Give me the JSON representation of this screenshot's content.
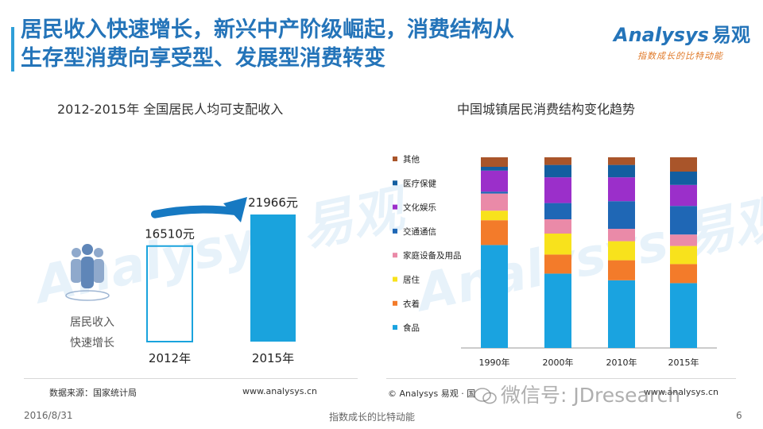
{
  "header": {
    "title": "居民收入快速增长，新兴中产阶级崛起，消费结构从\n生存型消费向享受型、发展型消费转变"
  },
  "logo": {
    "name": "Analysys",
    "name_cn": "易观",
    "slogan": "指数成长的比特动能"
  },
  "watermark": {
    "text": "Analysys 易观"
  },
  "people_caption": {
    "line1": "居民收入",
    "line2": "快速增长"
  },
  "chart_data": [
    {
      "type": "bar",
      "title": "2012-2015年 全国居民人均可支配收入",
      "categories": [
        "2012年",
        "2015年"
      ],
      "values": [
        16510,
        21966
      ],
      "value_labels": [
        "16510元",
        "21966元"
      ],
      "ylim": [
        0,
        25000
      ],
      "styles": [
        "outline",
        "filled"
      ],
      "color": "#1aa3dd",
      "annotation": "growth-arrow"
    },
    {
      "type": "bar",
      "stacked": true,
      "title": "中国城镇居民消费结构变化趋势",
      "categories": [
        "1990年",
        "2000年",
        "2010年",
        "2015年"
      ],
      "ylim": [
        0,
        100
      ],
      "legend_position": "left",
      "series": [
        {
          "name": "食品",
          "color": "#1aa3e0",
          "values": [
            54,
            39,
            35.5,
            34
          ]
        },
        {
          "name": "衣着",
          "color": "#f37b2a",
          "values": [
            13,
            10,
            10.5,
            10
          ]
        },
        {
          "name": "居住",
          "color": "#f8e21c",
          "values": [
            5,
            11,
            10,
            9.5
          ]
        },
        {
          "name": "家庭设备及用品",
          "color": "#ea8aa8",
          "values": [
            9,
            7.5,
            6.5,
            6
          ]
        },
        {
          "name": "交通通信",
          "color": "#1f67b5",
          "values": [
            1,
            8.5,
            14.5,
            15
          ]
        },
        {
          "name": "文化娱乐",
          "color": "#9b2fca",
          "values": [
            11,
            13.5,
            12.5,
            11
          ]
        },
        {
          "name": "医疗保健",
          "color": "#135ea0",
          "values": [
            2,
            6.5,
            6.5,
            7
          ]
        },
        {
          "name": "其他",
          "color": "#a9552a",
          "values": [
            5,
            4,
            4,
            7.5
          ]
        }
      ]
    }
  ],
  "footer": {
    "source": "数据来源：国家统计局",
    "url_left": "www.analysys.cn",
    "copyright": "© Analysys 易观 · 国",
    "url_right": "www.analysys.cn",
    "wechat": "微信号: JDresearch",
    "date": "2016/8/31",
    "slogan": "指数成长的比特动能",
    "page": "6"
  }
}
